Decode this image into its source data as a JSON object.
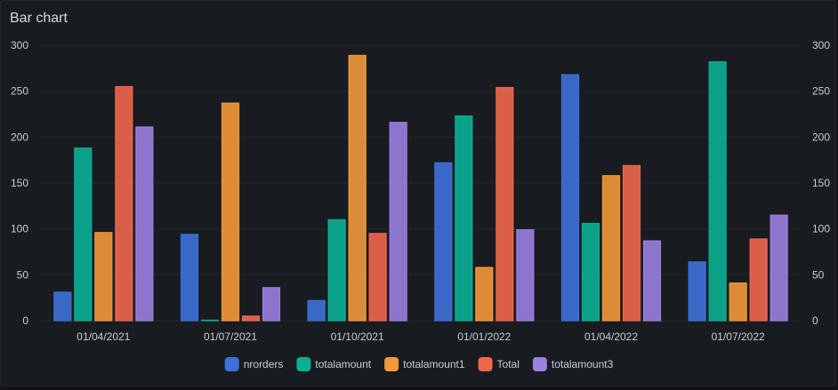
{
  "panel": {
    "title": "Bar chart"
  },
  "chart_data": {
    "type": "bar",
    "categories": [
      "01/04/2021",
      "01/07/2021",
      "01/10/2021",
      "01/01/2022",
      "01/04/2022",
      "01/07/2022"
    ],
    "series": [
      {
        "name": "nrorders",
        "color": "#3d71d9",
        "values": [
          31,
          94,
          22,
          172,
          268,
          64
        ]
      },
      {
        "name": "totalamount",
        "color": "#0aaf94",
        "values": [
          188,
          0,
          110,
          223,
          106,
          282
        ]
      },
      {
        "name": "totalamount1",
        "color": "#f2993a",
        "values": [
          96,
          237,
          289,
          58,
          158,
          41
        ]
      },
      {
        "name": "Total",
        "color": "#f0674e",
        "values": [
          255,
          5,
          95,
          254,
          169,
          89
        ]
      },
      {
        "name": "totalamount3",
        "color": "#9a80e0",
        "values": [
          211,
          36,
          216,
          99,
          87,
          115
        ]
      }
    ],
    "ylim": [
      0,
      300
    ],
    "yticks": [
      "0",
      "50",
      "100",
      "150",
      "200",
      "250",
      "300"
    ],
    "legend_position": "bottom",
    "grid": true
  }
}
